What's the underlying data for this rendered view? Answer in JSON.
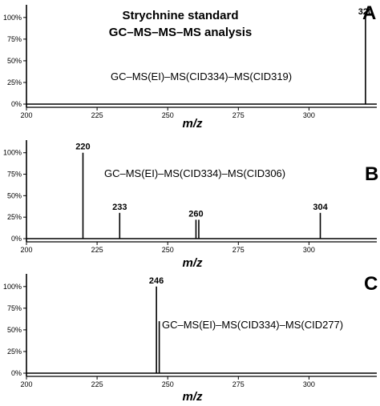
{
  "title_lines": [
    "Strychnine standard",
    "GC–MS–MS–MS analysis"
  ],
  "chart_data": [
    {
      "type": "bar",
      "panel_label": "A",
      "expression": "GC–MS(EI)–MS(CID334)–MS(CID319)",
      "xlabel": "m/z",
      "xlim": [
        200,
        324
      ],
      "ylim": [
        0,
        110
      ],
      "x_ticks": [
        "200",
        "225",
        "250",
        "275",
        "300"
      ],
      "y_ticks": [
        "0%",
        "25%",
        "50%",
        "75%",
        "100%"
      ],
      "peaks": [
        {
          "mz": 320,
          "intensity": 100,
          "label": "320"
        }
      ]
    },
    {
      "type": "bar",
      "panel_label": "B",
      "expression": "GC–MS(EI)–MS(CID334)–MS(CID306)",
      "xlabel": "m/z",
      "xlim": [
        200,
        324
      ],
      "ylim": [
        0,
        110
      ],
      "x_ticks": [
        "200",
        "225",
        "250",
        "275",
        "300"
      ],
      "y_ticks": [
        "0%",
        "25%",
        "50%",
        "75%",
        "100%"
      ],
      "peaks": [
        {
          "mz": 220,
          "intensity": 100,
          "label": "220"
        },
        {
          "mz": 233,
          "intensity": 30,
          "label": "233"
        },
        {
          "mz": 260,
          "intensity": 22,
          "label": "260"
        },
        {
          "mz": 261,
          "intensity": 22,
          "label": ""
        },
        {
          "mz": 304,
          "intensity": 30,
          "label": "304"
        }
      ]
    },
    {
      "type": "bar",
      "panel_label": "C",
      "expression": "GC–MS(EI)–MS(CID334)–MS(CID277)",
      "xlabel": "m/z",
      "xlim": [
        200,
        324
      ],
      "ylim": [
        0,
        110
      ],
      "x_ticks": [
        "200",
        "225",
        "250",
        "275",
        "300"
      ],
      "y_ticks": [
        "0%",
        "25%",
        "50%",
        "75%",
        "100%"
      ],
      "peaks": [
        {
          "mz": 246,
          "intensity": 100,
          "label": "246"
        },
        {
          "mz": 247,
          "intensity": 60,
          "label": ""
        }
      ]
    }
  ]
}
